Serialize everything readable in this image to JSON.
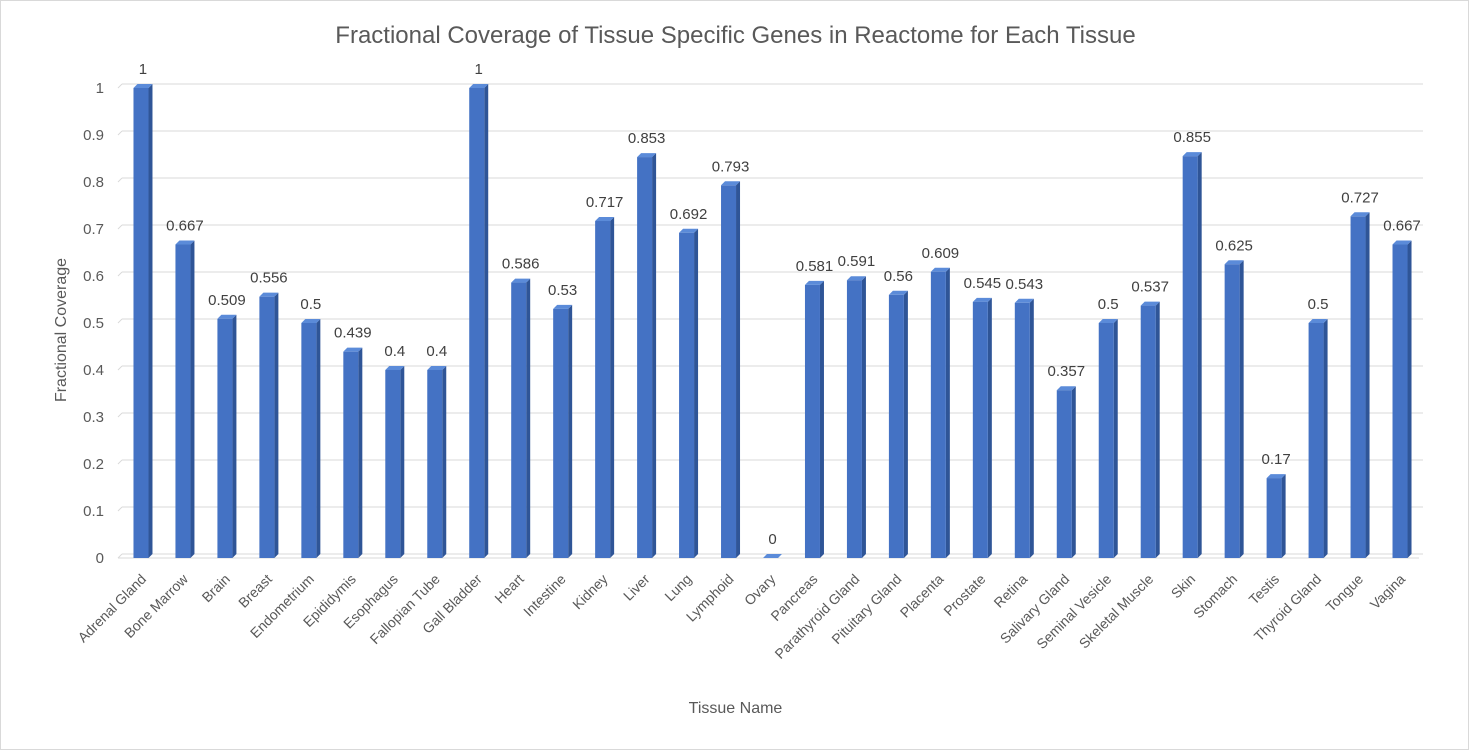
{
  "chart_data": {
    "type": "bar",
    "title": "Fractional Coverage of Tissue Specific Genes in Reactome for Each Tissue",
    "xlabel": "Tissue Name",
    "ylabel": "Fractional Coverage",
    "ylim": [
      0,
      1
    ],
    "yticks": [
      "0",
      "0.1",
      "0.2",
      "0.3",
      "0.4",
      "0.5",
      "0.6",
      "0.7",
      "0.8",
      "0.9",
      "1"
    ],
    "grid": true,
    "legend": "none",
    "bar_color": "#4472c4",
    "categories": [
      "Adrenal Gland",
      "Bone Marrow",
      "Brain",
      "Breast",
      "Endometrium",
      "Epididymis",
      "Esophagus",
      "Fallopian Tube",
      "Gall Bladder",
      "Heart",
      "Intestine",
      "Kidney",
      "Liver",
      "Lung",
      "Lymphoid",
      "Ovary",
      "Pancreas",
      "Parathyroid Gland",
      "Pituitary Gland",
      "Placenta",
      "Prostate",
      "Retina",
      "Salivary Gland",
      "Seminal Vesicle",
      "Skeletal Muscle",
      "Skin",
      "Stomach",
      "Testis",
      "Thyroid Gland",
      "Tongue",
      "Vagina"
    ],
    "values": [
      1,
      0.667,
      0.509,
      0.556,
      0.5,
      0.439,
      0.4,
      0.4,
      1,
      0.586,
      0.53,
      0.717,
      0.853,
      0.692,
      0.793,
      0,
      0.581,
      0.591,
      0.56,
      0.609,
      0.545,
      0.543,
      0.357,
      0.5,
      0.537,
      0.855,
      0.625,
      0.17,
      0.5,
      0.727,
      0.667
    ],
    "data_labels": [
      "1",
      "0.667",
      "0.509",
      "0.556",
      "0.5",
      "0.439",
      "0.4",
      "0.4",
      "1",
      "0.586",
      "0.53",
      "0.717",
      "0.853",
      "0.692",
      "0.793",
      "0",
      "0.581",
      "0.591",
      "0.56",
      "0.609",
      "0.545",
      "0.543",
      "0.357",
      "0.5",
      "0.537",
      "0.855",
      "0.625",
      "0.17",
      "0.5",
      "0.727",
      "0.667"
    ]
  }
}
